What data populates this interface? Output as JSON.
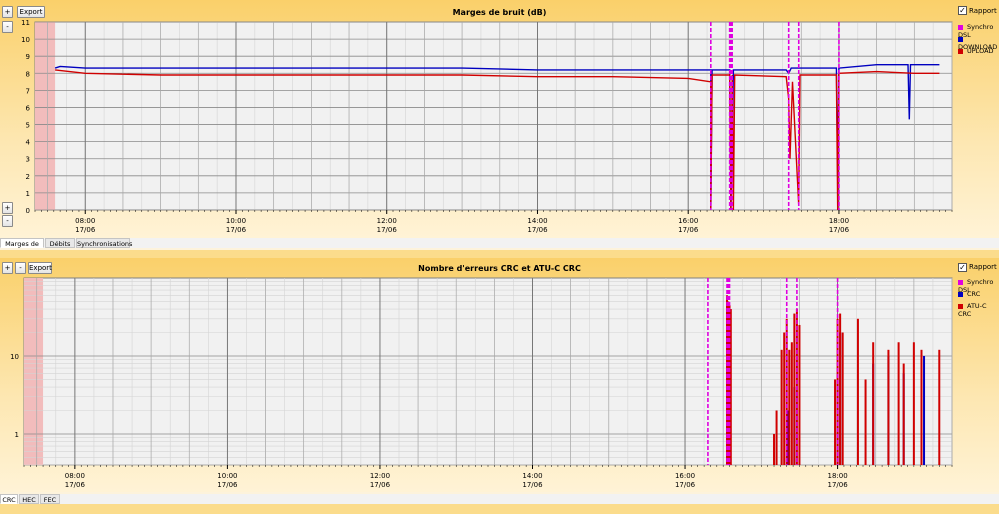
{
  "panel1": {
    "title": "Marges de bruit (dB)",
    "export_label": "Export",
    "plus_label": "+",
    "minus_label": "-",
    "rapport_label": "Rapport",
    "rapport_checked": true
  },
  "panel2": {
    "title": "Nombre d'erreurs CRC et ATU-C CRC",
    "export_label": "Export",
    "plus_label": "+",
    "minus_label": "-",
    "rapport_label": "Rapport",
    "rapport_checked": true
  },
  "tabs1": [
    "Marges de bruit",
    "Débits",
    "Synchronisations"
  ],
  "tabs2": [
    "CRC",
    "HEC",
    "FEC"
  ],
  "colors": {
    "sync": "#e000e0",
    "blue": "#0000c0",
    "red": "#d00000",
    "shade": "#f2bcbc"
  },
  "chart_data": [
    {
      "type": "line",
      "title": "Marges de bruit (dB)",
      "ylim": [
        0,
        11
      ],
      "yticks": [
        0,
        1,
        2,
        3,
        4,
        5,
        6,
        7,
        8,
        9,
        10,
        11
      ],
      "xlim": [
        "07:20",
        "19:30"
      ],
      "xticks": [
        {
          "time": "08:00",
          "date": "17/06"
        },
        {
          "time": "10:00",
          "date": "17/06"
        },
        {
          "time": "12:00",
          "date": "17/06"
        },
        {
          "time": "14:00",
          "date": "17/06"
        },
        {
          "time": "16:00",
          "date": "17/06"
        },
        {
          "time": "18:00",
          "date": "17/06"
        }
      ],
      "grid": true,
      "legend_position": "right",
      "shaded_range": [
        "07:20",
        "07:36"
      ],
      "sync_events": [
        "16:18",
        "16:33",
        "16:34",
        "16:35",
        "17:20",
        "17:28",
        "18:00"
      ],
      "series": [
        {
          "name": "Synchro DSL",
          "color": "#e000e0"
        },
        {
          "name": "DOWNLOAD",
          "color": "#0000c0",
          "points": [
            [
              "07:36",
              8.3
            ],
            [
              "07:40",
              8.4
            ],
            [
              "08:00",
              8.3
            ],
            [
              "09:00",
              8.3
            ],
            [
              "10:00",
              8.3
            ],
            [
              "11:00",
              8.3
            ],
            [
              "12:00",
              8.3
            ],
            [
              "13:00",
              8.3
            ],
            [
              "14:00",
              8.2
            ],
            [
              "15:00",
              8.2
            ],
            [
              "16:00",
              8.2
            ],
            [
              "16:18",
              8.2
            ],
            [
              "16:18",
              0.0
            ],
            [
              "16:19",
              8.2
            ],
            [
              "16:33",
              8.2
            ],
            [
              "16:34",
              0.0
            ],
            [
              "16:36",
              8.2
            ],
            [
              "17:18",
              8.2
            ],
            [
              "17:20",
              8.0
            ],
            [
              "17:22",
              8.3
            ],
            [
              "17:30",
              8.3
            ],
            [
              "17:58",
              8.3
            ],
            [
              "17:59",
              2.0
            ],
            [
              "18:00",
              8.3
            ],
            [
              "18:30",
              8.5
            ],
            [
              "18:55",
              8.5
            ],
            [
              "18:56",
              5.3
            ],
            [
              "18:57",
              8.5
            ],
            [
              "19:20",
              8.5
            ]
          ]
        },
        {
          "name": "UPLOAD",
          "color": "#d00000",
          "points": [
            [
              "07:36",
              8.2
            ],
            [
              "08:00",
              8.0
            ],
            [
              "09:00",
              7.9
            ],
            [
              "10:00",
              7.9
            ],
            [
              "11:00",
              7.9
            ],
            [
              "12:00",
              7.9
            ],
            [
              "13:00",
              7.9
            ],
            [
              "14:00",
              7.8
            ],
            [
              "15:00",
              7.8
            ],
            [
              "16:00",
              7.7
            ],
            [
              "16:18",
              7.5
            ],
            [
              "16:18",
              0.0
            ],
            [
              "16:19",
              7.9
            ],
            [
              "16:33",
              7.9
            ],
            [
              "16:34",
              0.0
            ],
            [
              "16:35",
              7.9
            ],
            [
              "16:36",
              0.0
            ],
            [
              "16:37",
              7.9
            ],
            [
              "17:18",
              7.8
            ],
            [
              "17:20",
              6.5
            ],
            [
              "17:21",
              3.0
            ],
            [
              "17:23",
              7.5
            ],
            [
              "17:28",
              0.3
            ],
            [
              "17:29",
              7.9
            ],
            [
              "17:58",
              7.9
            ],
            [
              "17:59",
              0.0
            ],
            [
              "18:00",
              8.0
            ],
            [
              "18:30",
              8.1
            ],
            [
              "19:00",
              8.0
            ],
            [
              "19:20",
              8.0
            ]
          ]
        }
      ]
    },
    {
      "type": "bar",
      "title": "Nombre d'erreurs CRC et ATU-C CRC",
      "yscale": "log",
      "ylim": [
        0.4,
        100
      ],
      "yticks": [
        1,
        10
      ],
      "xlim": [
        "07:20",
        "19:30"
      ],
      "xticks": [
        {
          "time": "08:00",
          "date": "17/06"
        },
        {
          "time": "10:00",
          "date": "17/06"
        },
        {
          "time": "12:00",
          "date": "17/06"
        },
        {
          "time": "14:00",
          "date": "17/06"
        },
        {
          "time": "16:00",
          "date": "17/06"
        },
        {
          "time": "18:00",
          "date": "17/06"
        }
      ],
      "grid": true,
      "legend_position": "right",
      "shaded_range": [
        "07:20",
        "07:35"
      ],
      "sync_events": [
        "16:18",
        "16:33",
        "16:34",
        "16:35",
        "17:20",
        "17:28",
        "18:00"
      ],
      "series": [
        {
          "name": "Synchro DSL",
          "color": "#e000e0"
        },
        {
          "name": "CRC",
          "color": "#0000c0",
          "bars": [
            [
              "16:34",
              40
            ],
            [
              "16:35",
              30
            ],
            [
              "17:21",
              2
            ],
            [
              "17:26",
              4
            ],
            [
              "18:00",
              5
            ],
            [
              "18:02",
              20
            ],
            [
              "18:28",
              8
            ],
            [
              "18:40",
              10
            ],
            [
              "18:52",
              6
            ],
            [
              "19:08",
              10
            ]
          ]
        },
        {
          "name": "ATU-C CRC",
          "color": "#d00000",
          "bars": [
            [
              "16:33",
              60
            ],
            [
              "16:34",
              50
            ],
            [
              "16:35",
              45
            ],
            [
              "16:36",
              40
            ],
            [
              "17:10",
              1
            ],
            [
              "17:12",
              2
            ],
            [
              "17:16",
              12
            ],
            [
              "17:18",
              20
            ],
            [
              "17:20",
              30
            ],
            [
              "17:22",
              12
            ],
            [
              "17:24",
              15
            ],
            [
              "17:26",
              35
            ],
            [
              "17:28",
              40
            ],
            [
              "17:30",
              25
            ],
            [
              "17:58",
              5
            ],
            [
              "18:00",
              30
            ],
            [
              "18:02",
              35
            ],
            [
              "18:04",
              20
            ],
            [
              "18:16",
              30
            ],
            [
              "18:22",
              5
            ],
            [
              "18:28",
              15
            ],
            [
              "18:40",
              12
            ],
            [
              "18:48",
              15
            ],
            [
              "18:52",
              8
            ],
            [
              "19:00",
              15
            ],
            [
              "19:06",
              12
            ],
            [
              "19:20",
              12
            ]
          ]
        }
      ]
    }
  ]
}
